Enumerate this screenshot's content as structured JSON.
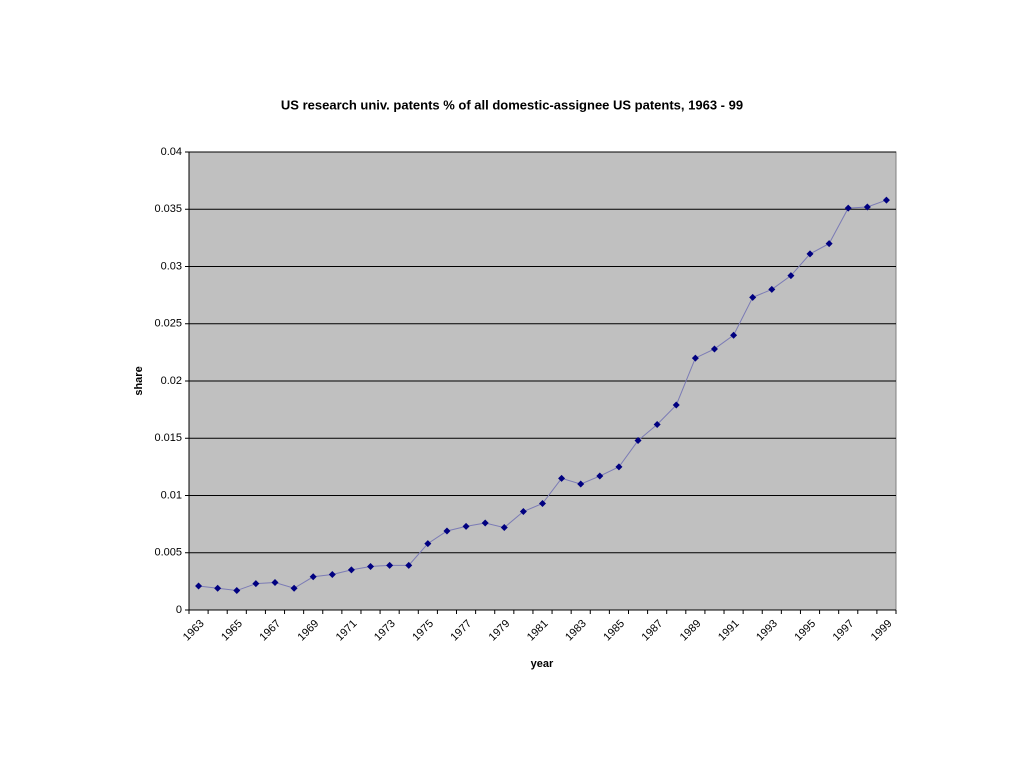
{
  "chart_data": {
    "type": "line",
    "title": "US research univ. patents % of all domestic-assignee US patents, 1963 - 99",
    "x_label": "year",
    "y_label": "share",
    "categories": [
      "1963",
      null,
      "1965",
      null,
      "1967",
      null,
      "1969",
      null,
      "1971",
      null,
      "1973",
      null,
      "1975",
      null,
      "1977",
      null,
      "1979",
      null,
      "1981",
      null,
      "1983",
      null,
      "1985",
      null,
      "1987",
      null,
      "1989",
      null,
      "1991",
      null,
      "1993",
      null,
      "1995",
      null,
      "1997",
      null,
      "1999"
    ],
    "values": [
      0.0021,
      0.0019,
      0.0017,
      0.0023,
      0.0024,
      0.0019,
      0.0029,
      0.0031,
      0.0035,
      0.0038,
      0.0039,
      0.0039,
      0.0058,
      0.0069,
      0.0073,
      0.0076,
      0.0072,
      0.0086,
      0.0093,
      0.0115,
      0.011,
      0.0117,
      0.0125,
      0.0148,
      0.0162,
      0.0179,
      0.022,
      0.0228,
      0.024,
      0.0273,
      0.028,
      0.0292,
      0.0311,
      0.032,
      0.0351,
      0.0352,
      0.0358
    ],
    "color": "#000080",
    "line_color": "#7b7bb5",
    "plot_background": "#c0c0c0",
    "ylim": [
      0,
      0.04
    ],
    "yticks": [
      0,
      0.005,
      0.01,
      0.015,
      0.02,
      0.025,
      0.03,
      0.035,
      0.04
    ],
    "grid": true
  }
}
